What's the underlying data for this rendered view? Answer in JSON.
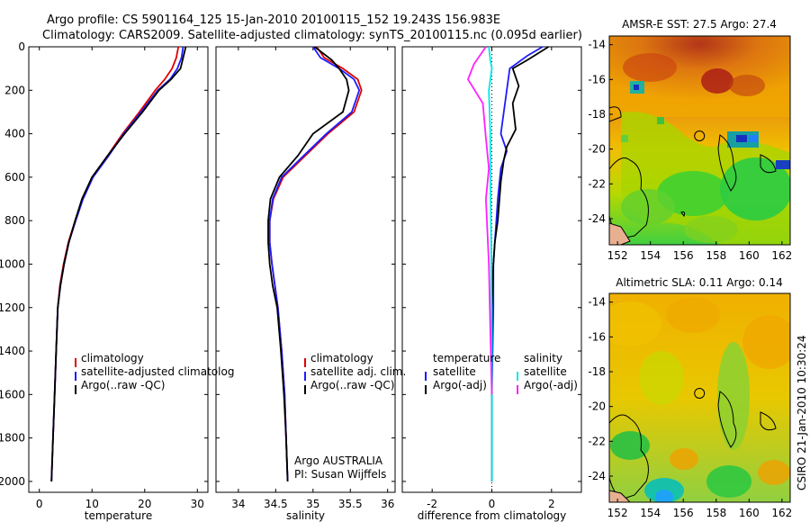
{
  "header": {
    "line1": "Argo profile: CS 5901164_125 15-Jan-2010 20100115_152 19.243S 156.983E",
    "line2": "Climatology: CARS2009. Satellite-adjusted climatology: synTS_20100115.nc (0.095d earlier)"
  },
  "credit": {
    "argo": "Argo AUSTRALIA",
    "pi": "PI: Susan Wijffels",
    "stamp": "CSIRO 21-Jan-2010 10:30:24"
  },
  "colors": {
    "clim": "#e00000",
    "sat": "#1c1cff",
    "argo": "#000000",
    "sal_sat": "#00e8e8",
    "sal_argo": "#ff20ff"
  },
  "chart_data": [
    {
      "type": "line",
      "title": "",
      "xlabel": "temperature",
      "ylabel": "",
      "xlim": [
        -2,
        32
      ],
      "ylim": [
        2050,
        0
      ],
      "xticks": [
        0,
        10,
        20,
        30
      ],
      "yticks": [
        0,
        200,
        400,
        600,
        800,
        1000,
        1200,
        1400,
        1600,
        1800,
        2000
      ],
      "legend": [
        "climatology",
        "satellite-adjusted climatolog",
        "Argo(..raw -QC)"
      ],
      "series": [
        {
          "name": "climatology",
          "color": "#e00000",
          "x": [
            26.4,
            26.0,
            25.2,
            23.8,
            22.0,
            19.0,
            15.8,
            13.0,
            10.0,
            8.2,
            6.8,
            5.5,
            4.6,
            3.9,
            3.5,
            3.2,
            2.9,
            2.6,
            2.3
          ],
          "y": [
            0,
            50,
            100,
            150,
            200,
            300,
            400,
            500,
            600,
            700,
            800,
            900,
            1000,
            1100,
            1200,
            1400,
            1600,
            1800,
            2000
          ]
        },
        {
          "name": "satellite-adjusted climatology",
          "color": "#1c1cff",
          "x": [
            27.3,
            27.0,
            26.2,
            24.8,
            22.5,
            19.3,
            16.0,
            13.2,
            10.2,
            8.3,
            6.9,
            5.6,
            4.7,
            4.0,
            3.5,
            3.2,
            2.9,
            2.6,
            2.3
          ],
          "y": [
            0,
            50,
            100,
            150,
            200,
            300,
            400,
            500,
            600,
            700,
            800,
            900,
            1000,
            1100,
            1200,
            1400,
            1600,
            1800,
            2000
          ]
        },
        {
          "name": "Argo(..raw -QC)",
          "color": "#000000",
          "x": [
            27.8,
            27.4,
            26.8,
            25.0,
            22.7,
            19.6,
            16.2,
            13.0,
            10.0,
            8.1,
            6.8,
            5.6,
            4.7,
            4.0,
            3.5,
            3.2,
            2.9,
            2.6,
            2.3
          ],
          "y": [
            0,
            40,
            100,
            150,
            200,
            300,
            400,
            500,
            600,
            700,
            800,
            900,
            1000,
            1100,
            1200,
            1400,
            1600,
            1800,
            2000
          ]
        }
      ]
    },
    {
      "type": "line",
      "title": "",
      "xlabel": "salinity",
      "ylabel": "",
      "xlim": [
        33.7,
        36.1
      ],
      "ylim": [
        2050,
        0
      ],
      "xticks": [
        34,
        34.5,
        35,
        35.5,
        36
      ],
      "yticks": [
        0,
        200,
        400,
        600,
        800,
        1000,
        1200,
        1400,
        1600,
        1800,
        2000
      ],
      "legend": [
        "climatology",
        "satellite adj. clim.",
        "Argo(..raw -QC)"
      ],
      "series": [
        {
          "name": "climatology",
          "color": "#e00000",
          "x": [
            35.05,
            35.15,
            35.4,
            35.6,
            35.65,
            35.55,
            35.2,
            34.9,
            34.6,
            34.47,
            34.42,
            34.42,
            34.45,
            34.49,
            34.53,
            34.58,
            34.62,
            34.64,
            34.66
          ],
          "y": [
            0,
            50,
            100,
            150,
            200,
            300,
            400,
            500,
            600,
            700,
            800,
            900,
            1000,
            1100,
            1200,
            1400,
            1600,
            1800,
            2000
          ]
        },
        {
          "name": "satellite adj. clim.",
          "color": "#1c1cff",
          "x": [
            35.0,
            35.1,
            35.35,
            35.55,
            35.62,
            35.52,
            35.18,
            34.88,
            34.58,
            34.46,
            34.42,
            34.42,
            34.45,
            34.49,
            34.53,
            34.58,
            34.62,
            34.64,
            34.66
          ],
          "y": [
            0,
            50,
            100,
            150,
            200,
            300,
            400,
            500,
            600,
            700,
            800,
            900,
            1000,
            1100,
            1200,
            1400,
            1600,
            1800,
            2000
          ]
        },
        {
          "name": "Argo(..raw -QC)",
          "color": "#000000",
          "x": [
            35.02,
            35.25,
            35.35,
            35.45,
            35.48,
            35.4,
            35.0,
            34.8,
            34.55,
            34.43,
            34.4,
            34.4,
            34.42,
            34.46,
            34.52,
            34.57,
            34.61,
            34.64,
            34.66
          ],
          "y": [
            0,
            60,
            100,
            150,
            200,
            300,
            400,
            500,
            600,
            700,
            800,
            900,
            1000,
            1100,
            1200,
            1400,
            1600,
            1800,
            2000
          ]
        }
      ]
    },
    {
      "type": "line",
      "title": "",
      "xlabel": "difference from climatology",
      "ylabel": "",
      "xlim": [
        -3,
        3
      ],
      "ylim": [
        2050,
        0
      ],
      "xticks": [
        -2,
        0,
        2
      ],
      "yticks": [
        0,
        200,
        400,
        600,
        800,
        1000,
        1200,
        1400,
        1600,
        1800,
        2000
      ],
      "legend_left_title": "temperature",
      "legend_right_title": "salinity",
      "legend_left": [
        "satellite",
        "Argo(-adj)"
      ],
      "legend_right": [
        "satellite",
        "Argo(-adj)"
      ],
      "series": [
        {
          "name": "temperature satellite",
          "color": "#1c1cff",
          "x": [
            1.7,
            1.2,
            0.6,
            0.5,
            0.4,
            0.3,
            0.5,
            0.3,
            0.2,
            0.15,
            0.1,
            0.05,
            0.05,
            0.0,
            0.0
          ],
          "y": [
            0,
            40,
            100,
            200,
            300,
            400,
            480,
            560,
            700,
            800,
            900,
            1000,
            1200,
            1600,
            2000
          ]
        },
        {
          "name": "temperature Argo(-adj)",
          "color": "#000000",
          "x": [
            1.9,
            1.2,
            0.7,
            0.9,
            0.7,
            0.8,
            0.5,
            0.4,
            0.3,
            0.2,
            0.1,
            0.05,
            0.0,
            0.0
          ],
          "y": [
            0,
            60,
            100,
            180,
            260,
            380,
            460,
            520,
            620,
            800,
            900,
            1000,
            1200,
            2000
          ]
        },
        {
          "name": "salinity satellite",
          "color": "#00e8e8",
          "x": [
            -0.1,
            -0.05,
            0.0,
            -0.1,
            -0.05,
            -0.05,
            -0.02,
            0.0,
            0.0
          ],
          "y": [
            0,
            60,
            100,
            200,
            400,
            600,
            900,
            1400,
            2000
          ]
        },
        {
          "name": "salinity Argo(-adj)",
          "color": "#ff20ff",
          "x": [
            -0.2,
            -0.6,
            -0.8,
            -0.3,
            -0.2,
            -0.1,
            -0.2,
            -0.1,
            -0.05,
            0.0
          ],
          "y": [
            0,
            80,
            150,
            260,
            420,
            560,
            700,
            1000,
            1300,
            1600
          ]
        }
      ]
    },
    {
      "type": "heatmap",
      "title": "AMSR-E SST: 27.5 Argo: 27.4",
      "xlabel": "",
      "ylabel": "",
      "xlim": [
        151.5,
        162.5
      ],
      "ylim": [
        -25.5,
        -13.5
      ],
      "xticks": [
        152,
        154,
        156,
        158,
        160,
        162
      ],
      "yticks": [
        -14,
        -16,
        -18,
        -20,
        -22,
        -24
      ],
      "argo_position": [
        156.983,
        -19.243
      ]
    },
    {
      "type": "heatmap",
      "title": "Altimetric SLA: 0.11 Argo: 0.14",
      "xlabel": "",
      "ylabel": "",
      "xlim": [
        151.5,
        162.5
      ],
      "ylim": [
        -25.5,
        -13.5
      ],
      "xticks": [
        152,
        154,
        156,
        158,
        160,
        162
      ],
      "yticks": [
        -14,
        -16,
        -18,
        -20,
        -22,
        -24
      ],
      "argo_position": [
        156.983,
        -19.243
      ]
    }
  ]
}
